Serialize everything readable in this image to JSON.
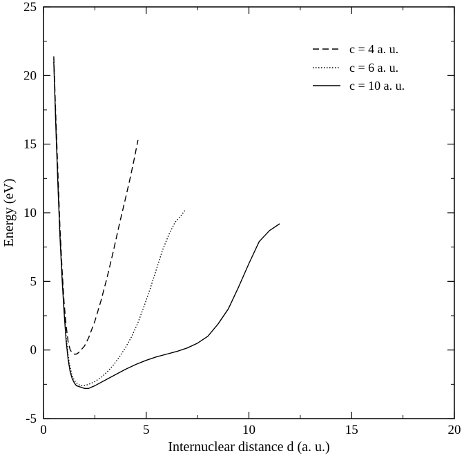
{
  "chart_data": {
    "type": "line",
    "title": "",
    "xlabel": "Internuclear distance d (a. u.)",
    "ylabel": "Energy (eV)",
    "xlim": [
      0,
      20
    ],
    "ylim": [
      -5,
      25
    ],
    "x_ticks": [
      0,
      5,
      10,
      15,
      20
    ],
    "y_ticks": [
      -5,
      0,
      5,
      10,
      15,
      20,
      25
    ],
    "grid": false,
    "legend_position": "top-right",
    "series": [
      {
        "name": "c = 4 a. u.",
        "style": "dashed",
        "color": "#000000",
        "points": [
          [
            0.5,
            21.4
          ],
          [
            0.6,
            17.0
          ],
          [
            0.7,
            13.0
          ],
          [
            0.8,
            9.0
          ],
          [
            0.9,
            6.0
          ],
          [
            1.0,
            3.5
          ],
          [
            1.1,
            1.8
          ],
          [
            1.2,
            0.6
          ],
          [
            1.3,
            0.0
          ],
          [
            1.4,
            -0.2
          ],
          [
            1.5,
            -0.3
          ],
          [
            1.6,
            -0.3
          ],
          [
            1.7,
            -0.2
          ],
          [
            1.8,
            -0.05
          ],
          [
            2.0,
            0.3
          ],
          [
            2.2,
            0.9
          ],
          [
            2.5,
            2.1
          ],
          [
            2.8,
            3.6
          ],
          [
            3.1,
            5.3
          ],
          [
            3.4,
            7.2
          ],
          [
            3.7,
            9.2
          ],
          [
            4.0,
            11.1
          ],
          [
            4.2,
            12.4
          ],
          [
            4.4,
            13.8
          ],
          [
            4.6,
            15.3
          ]
        ]
      },
      {
        "name": "c = 6 a. u.",
        "style": "dotted",
        "color": "#000000",
        "points": [
          [
            0.5,
            21.2
          ],
          [
            0.6,
            16.5
          ],
          [
            0.7,
            12.3
          ],
          [
            0.8,
            8.5
          ],
          [
            0.9,
            5.5
          ],
          [
            1.0,
            3.0
          ],
          [
            1.1,
            1.0
          ],
          [
            1.2,
            -0.4
          ],
          [
            1.3,
            -1.3
          ],
          [
            1.4,
            -1.9
          ],
          [
            1.5,
            -2.2
          ],
          [
            1.6,
            -2.4
          ],
          [
            1.8,
            -2.6
          ],
          [
            2.0,
            -2.6
          ],
          [
            2.2,
            -2.5
          ],
          [
            2.5,
            -2.3
          ],
          [
            2.8,
            -2.0
          ],
          [
            3.1,
            -1.6
          ],
          [
            3.4,
            -1.1
          ],
          [
            3.7,
            -0.5
          ],
          [
            4.0,
            0.2
          ],
          [
            4.3,
            1.0
          ],
          [
            4.6,
            2.0
          ],
          [
            4.9,
            3.2
          ],
          [
            5.2,
            4.5
          ],
          [
            5.5,
            5.9
          ],
          [
            5.8,
            7.3
          ],
          [
            6.1,
            8.4
          ],
          [
            6.4,
            9.3
          ],
          [
            6.7,
            9.8
          ],
          [
            6.9,
            10.2
          ]
        ]
      },
      {
        "name": "c = 10 a. u.",
        "style": "solid",
        "color": "#000000",
        "points": [
          [
            0.5,
            21.0
          ],
          [
            0.6,
            16.3
          ],
          [
            0.7,
            12.1
          ],
          [
            0.8,
            8.3
          ],
          [
            0.9,
            5.3
          ],
          [
            1.0,
            2.8
          ],
          [
            1.1,
            0.7
          ],
          [
            1.2,
            -0.7
          ],
          [
            1.3,
            -1.6
          ],
          [
            1.4,
            -2.1
          ],
          [
            1.5,
            -2.4
          ],
          [
            1.6,
            -2.6
          ],
          [
            1.8,
            -2.7
          ],
          [
            2.0,
            -2.8
          ],
          [
            2.2,
            -2.8
          ],
          [
            2.5,
            -2.6
          ],
          [
            3.0,
            -2.2
          ],
          [
            3.5,
            -1.8
          ],
          [
            4.0,
            -1.4
          ],
          [
            4.5,
            -1.05
          ],
          [
            5.0,
            -0.75
          ],
          [
            5.5,
            -0.5
          ],
          [
            6.0,
            -0.3
          ],
          [
            6.5,
            -0.1
          ],
          [
            7.0,
            0.15
          ],
          [
            7.5,
            0.5
          ],
          [
            8.0,
            1.0
          ],
          [
            8.5,
            1.9
          ],
          [
            9.0,
            3.0
          ],
          [
            9.5,
            4.6
          ],
          [
            10.0,
            6.3
          ],
          [
            10.5,
            7.9
          ],
          [
            11.0,
            8.7
          ],
          [
            11.5,
            9.2
          ]
        ]
      }
    ]
  }
}
